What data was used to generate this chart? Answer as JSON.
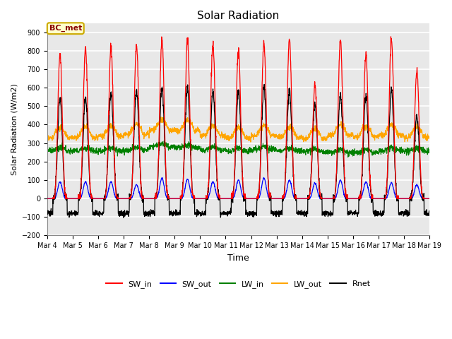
{
  "title": "Solar Radiation",
  "ylabel": "Solar Radiation (W/m2)",
  "xlabel": "Time",
  "ylim": [
    -200,
    950
  ],
  "yticks": [
    -200,
    -100,
    0,
    100,
    200,
    300,
    400,
    500,
    600,
    700,
    800,
    900
  ],
  "annotation_text": "BC_met",
  "annotation_bg": "#FFFFCC",
  "annotation_border": "#CCAA00",
  "annotation_text_color": "#880000",
  "days": 15,
  "start_day": 4,
  "legend_labels": [
    "SW_in",
    "SW_out",
    "LW_in",
    "LW_out",
    "Rnet"
  ],
  "line_colors": [
    "red",
    "blue",
    "green",
    "orange",
    "black"
  ],
  "plot_bg": "#E8E8E8",
  "grid_color": "#CCCCCC",
  "SW_in_peaks": [
    780,
    810,
    820,
    830,
    860,
    860,
    840,
    800,
    845,
    860,
    615,
    860,
    780,
    860,
    695
  ],
  "SW_out_peaks": [
    90,
    90,
    90,
    75,
    110,
    105,
    90,
    100,
    110,
    100,
    85,
    100,
    90,
    85,
    75
  ],
  "LW_in_base": [
    258,
    258,
    258,
    262,
    280,
    275,
    262,
    258,
    265,
    258,
    252,
    250,
    248,
    260,
    258
  ],
  "LW_out_base": [
    330,
    332,
    338,
    348,
    370,
    368,
    340,
    328,
    340,
    332,
    322,
    342,
    336,
    344,
    332
  ],
  "Rnet_peaks": [
    535,
    545,
    570,
    580,
    600,
    600,
    580,
    575,
    605,
    585,
    510,
    560,
    560,
    590,
    440
  ],
  "night_rnet": -80,
  "pts_per_day": 144,
  "sunrise_idx": 32,
  "sunset_idx": 112
}
